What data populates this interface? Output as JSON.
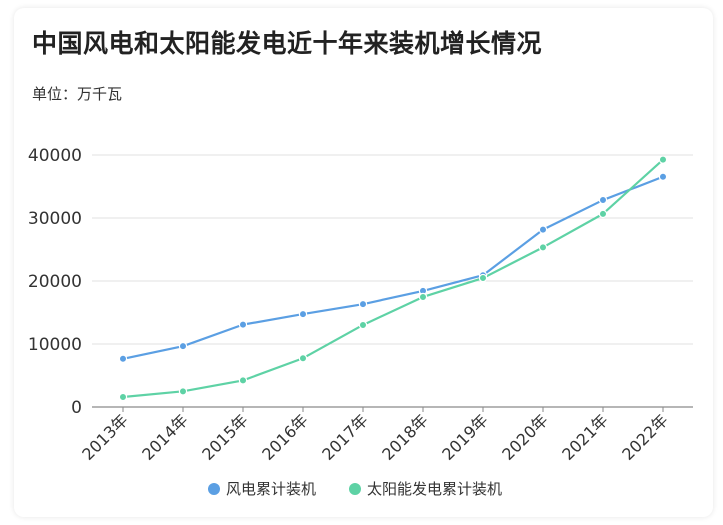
{
  "header": {
    "title": "中国风电和太阳能发电近十年来装机增长情况",
    "unit": "单位：万千瓦"
  },
  "chart_data": {
    "type": "line",
    "title": "中国风电和太阳能发电近十年来装机增长情况",
    "subtitle": "单位：万千瓦",
    "xlabel": "",
    "ylabel": "",
    "x": [
      "2013年",
      "2014年",
      "2015年",
      "2016年",
      "2017年",
      "2018年",
      "2019年",
      "2020年",
      "2021年",
      "2022年"
    ],
    "ylim": [
      0,
      40000
    ],
    "yticks": [
      0,
      10000,
      20000,
      30000,
      40000
    ],
    "grid": true,
    "legend": "bottom",
    "series": [
      {
        "name": "风电累计装机",
        "color": "#5b9fe3",
        "values": [
          7652,
          9657,
          13075,
          14747,
          16325,
          18427,
          20915,
          28153,
          32848,
          36544
        ]
      },
      {
        "name": "太阳能发电累计装机",
        "color": "#5ed2a5",
        "values": [
          1589,
          2486,
          4218,
          7742,
          13025,
          17463,
          20468,
          25343,
          30656,
          39261
        ]
      }
    ]
  }
}
